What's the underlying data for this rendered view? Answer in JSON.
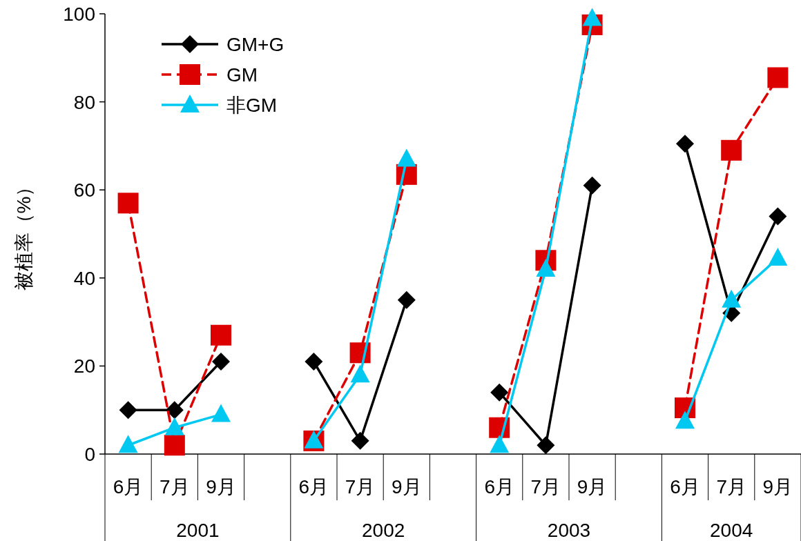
{
  "chart_data": {
    "type": "line",
    "ylabel": "被植率（%）",
    "categories": [
      "6月",
      "7月",
      "9月",
      null,
      "6月",
      "7月",
      "9月",
      null,
      "6月",
      "7月",
      "9月",
      null,
      "6月",
      "7月",
      "9月"
    ],
    "annotations": [
      "2001",
      "2002",
      "2003",
      "2004"
    ],
    "series": [
      {
        "name": "GM+G",
        "color": "#000000",
        "marker": "diamond",
        "line_style": "solid",
        "values": [
          10,
          10,
          21,
          null,
          21,
          3,
          35,
          null,
          14,
          2,
          61,
          null,
          70.5,
          32,
          54
        ]
      },
      {
        "name": "GM",
        "color": "#dd0000",
        "marker": "square",
        "line_style": "dashed",
        "values": [
          57,
          2,
          27,
          null,
          3,
          23,
          63.5,
          null,
          6,
          44,
          97.5,
          null,
          10.5,
          69,
          85.5
        ]
      },
      {
        "name": "非GM",
        "color": "#00c8f0",
        "marker": "triangle",
        "line_style": "solid",
        "values": [
          2,
          6,
          9,
          null,
          3,
          18,
          67,
          null,
          2,
          42,
          99,
          null,
          7.5,
          35,
          44.5
        ]
      }
    ],
    "ylim": [
      0,
      100
    ],
    "yticks": [
      0,
      20,
      40,
      60,
      80,
      100
    ],
    "grid": false,
    "legend": "top left"
  }
}
